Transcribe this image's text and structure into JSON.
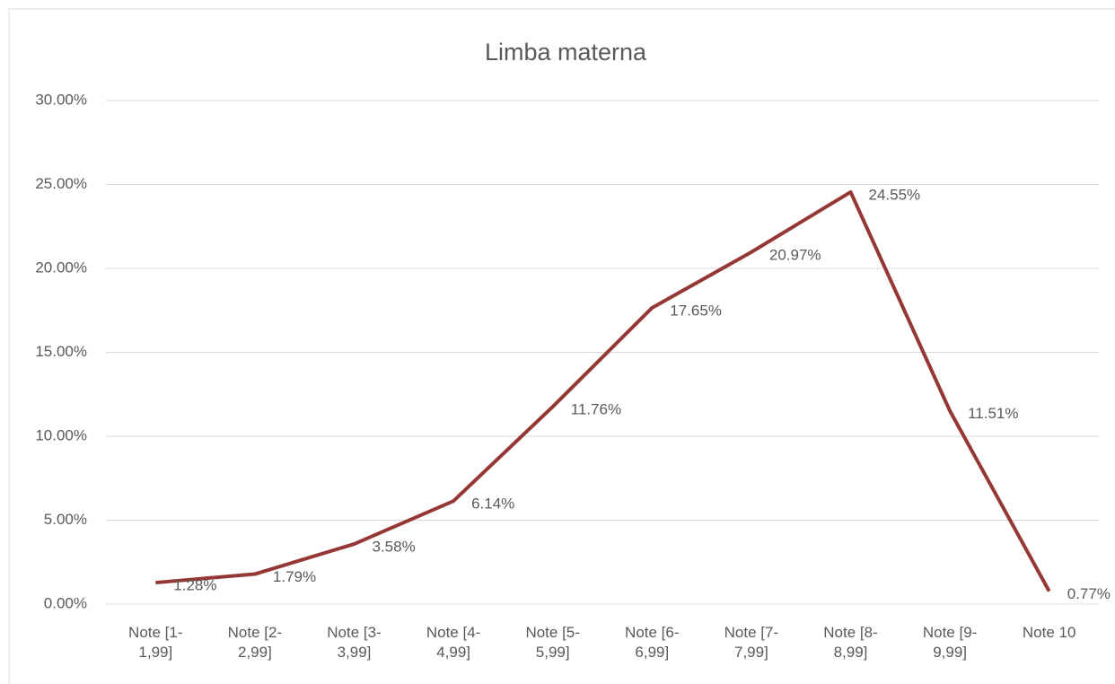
{
  "chart_data": {
    "type": "line",
    "title": "Limba materna",
    "categories": [
      "Note [1-1,99]",
      "Note [2-2,99]",
      "Note [3-3,99]",
      "Note [4-4,99]",
      "Note [5-5,99]",
      "Note [6-6,99]",
      "Note [7-7,99]",
      "Note [8-8,99]",
      "Note [9-9,99]",
      "Note 10"
    ],
    "series": [
      {
        "name": "Limba materna",
        "color": "#953735",
        "values": [
          1.28,
          1.79,
          3.58,
          6.14,
          11.76,
          17.65,
          20.97,
          24.55,
          11.51,
          0.77
        ],
        "value_labels": [
          "1.28%",
          "1.79%",
          "3.58%",
          "6.14%",
          "11.76%",
          "17.65%",
          "20.97%",
          "24.55%",
          "11.51%",
          "0.77%"
        ]
      }
    ],
    "ylim": [
      0,
      30
    ],
    "yticks": [
      {
        "value": 0,
        "label": "0.00%"
      },
      {
        "value": 5,
        "label": "5.00%"
      },
      {
        "value": 10,
        "label": "10.00%"
      },
      {
        "value": 15,
        "label": "15.00%"
      },
      {
        "value": 20,
        "label": "20.00%"
      },
      {
        "value": 25,
        "label": "25.00%"
      },
      {
        "value": 30,
        "label": "30.00%"
      }
    ],
    "grid": true
  }
}
